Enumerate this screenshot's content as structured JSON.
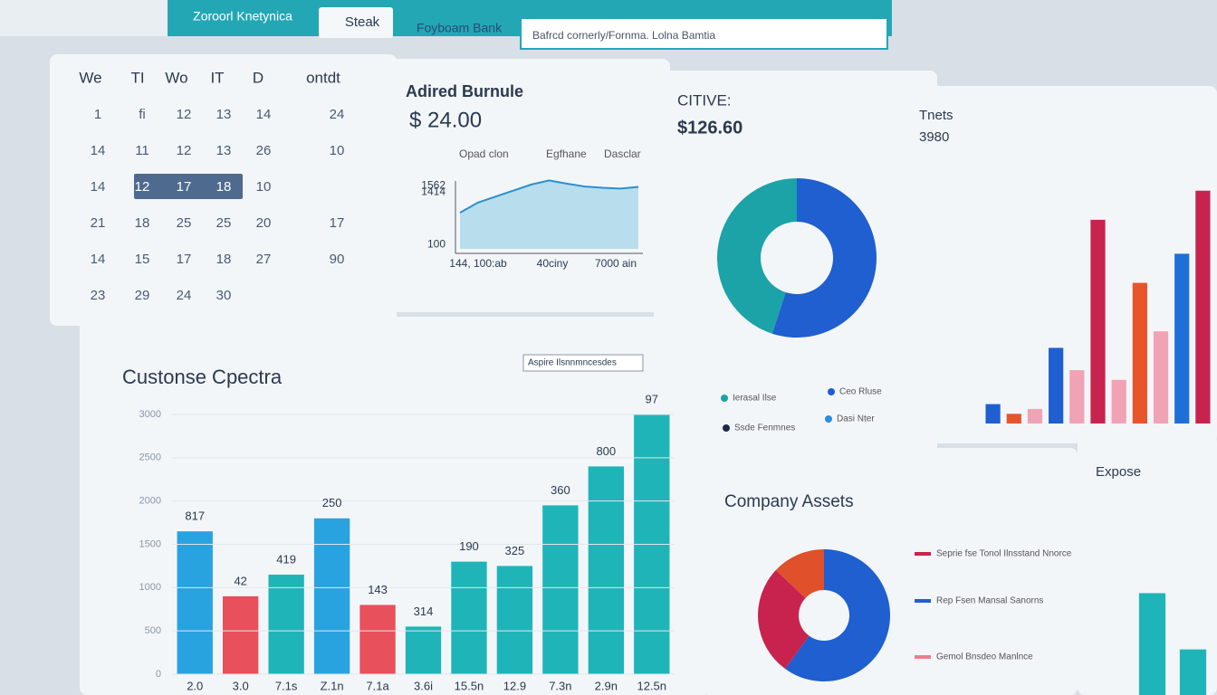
{
  "topbar": {
    "tabs": [
      "Zoroorl Knetynica",
      "Steak",
      "Foyboam Bank"
    ],
    "search": "Bafrcd cornerly/Fornma. Lolna Bamtia"
  },
  "calendar": {
    "header": [
      "We",
      "TI",
      "Wo",
      "IT",
      "D",
      "ontdt"
    ],
    "rows": [
      [
        "1",
        "fi",
        "12",
        "13",
        "14",
        "24"
      ],
      [
        "14",
        "11",
        "12",
        "13",
        "26",
        "10"
      ],
      [
        "14",
        "12",
        "17",
        "18",
        "10"
      ],
      [
        "21",
        "18",
        "25",
        "25",
        "20",
        "17"
      ],
      [
        "14",
        "15",
        "17",
        "18",
        "27",
        "90"
      ],
      [
        "23",
        "29",
        "24",
        "30"
      ]
    ]
  },
  "balance": {
    "title": "Adired Burnule",
    "amount": "$ 24.00",
    "labels": [
      "Opad clon",
      "Egfhane",
      "Dasclar"
    ],
    "chart": {
      "type": "area",
      "color": "#2b8fd0",
      "values": [
        900,
        1150,
        1300,
        1450,
        1600,
        1700,
        1620,
        1550,
        1520,
        1500,
        1540
      ],
      "ylim": [
        0,
        1800
      ],
      "yticks": [
        100,
        1414,
        1562
      ],
      "x_labels": [
        "144, 100:ab",
        "40ciny",
        "7000 ain"
      ]
    }
  },
  "citive": {
    "title": "CITIVE:",
    "amount": "$126.60",
    "chart": {
      "type": "donut",
      "values": [
        55,
        45
      ],
      "colors": [
        "#1f5fcf",
        "#1ba3a8"
      ]
    },
    "legend": [
      {
        "label": "Ierasal Ilse",
        "color": "#1ba3a8"
      },
      {
        "label": "Ceo Rluse",
        "color": "#1f5fcf"
      },
      {
        "label": "Ssde Fenmnes",
        "color": "#1b2a4a"
      },
      {
        "label": "Dasi Nter",
        "color": "#2a8de0"
      }
    ]
  },
  "tnets": {
    "title": "Tnets",
    "subtitle": "3980",
    "chart": {
      "type": "bar",
      "ylim": [
        0,
        250
      ],
      "values": [
        20,
        10,
        15,
        78,
        55,
        210,
        45,
        145,
        95,
        175,
        240
      ],
      "colors": [
        "#1f5fcf",
        "#e8552b",
        "#f0a3b5",
        "#1f5fcf",
        "#f0a3b5",
        "#c8234e",
        "#f0a3b5",
        "#e8552b",
        "#f0a3b5",
        "#1f6fd8",
        "#c8234e"
      ]
    }
  },
  "customers": {
    "title": "Custonse Cpectra",
    "filter": "Aspire Ilsnnmncesdes",
    "chart": {
      "type": "bar",
      "ylim": [
        0,
        3000
      ],
      "yticks": [
        0,
        500,
        1000,
        1500,
        2000,
        2500,
        3000
      ],
      "values": [
        1650,
        900,
        1150,
        1800,
        800,
        550,
        1300,
        1250,
        1950,
        2400,
        3000
      ],
      "colors": [
        "#29a3e0",
        "#e8505b",
        "#1fb5b8",
        "#29a3e0",
        "#e8505b",
        "#1fb5b8",
        "#1fb5b8",
        "#1fb5b8",
        "#1fb5b8",
        "#1fb5b8",
        "#1fb5b8"
      ],
      "annotations": [
        "817",
        "42",
        "419",
        "250",
        "143",
        "314",
        "190",
        "325",
        "360",
        "800",
        "97"
      ],
      "categories": [
        "2.0",
        "3.0",
        "7.1s",
        "Z.1n",
        "7.1a",
        "3.6i",
        "15.5n",
        "12.9",
        "7.3n",
        "2.9n",
        "12.5n"
      ]
    }
  },
  "assets": {
    "title": "Company Assets",
    "chart": {
      "type": "donut",
      "values": [
        60,
        27,
        13
      ],
      "colors": [
        "#1f5fcf",
        "#c8234e",
        "#e0502a"
      ]
    },
    "legend": [
      {
        "label": "Seprie fse Tonol Ilnsstand Nnorce",
        "color": "#c8234e"
      },
      {
        "label": "Rep Fsen Mansal Sanorns",
        "color": "#1f5fcf"
      },
      {
        "label": "Gemol Bnsdeo Manlnce",
        "color": "#e8808f"
      }
    ]
  },
  "expose": {
    "title": "Expose",
    "chart": {
      "type": "bar",
      "ylim": [
        0,
        100
      ],
      "values": [
        67,
        30
      ],
      "colors": [
        "#1fb5b8",
        "#1fb5b8"
      ]
    }
  }
}
